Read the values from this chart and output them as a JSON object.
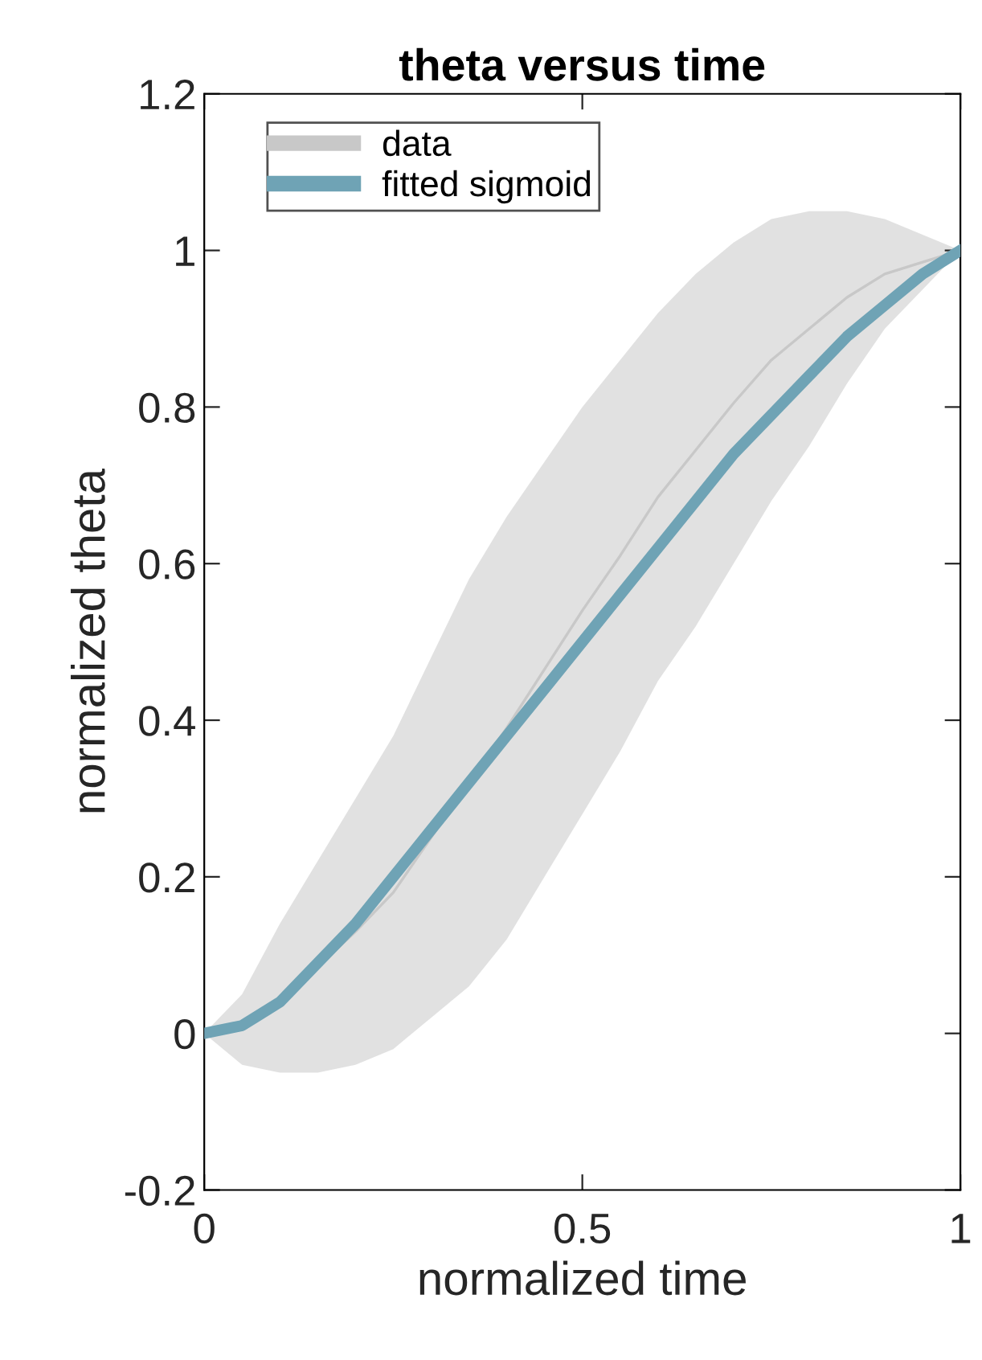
{
  "chart_data": {
    "type": "line",
    "title": "theta versus time",
    "xlabel": "normalized time",
    "ylabel": "normalized theta",
    "x": [
      0,
      0.05,
      0.1,
      0.15,
      0.2,
      0.25,
      0.3,
      0.35,
      0.4,
      0.45,
      0.5,
      0.55,
      0.6,
      0.65,
      0.7,
      0.75,
      0.8,
      0.85,
      0.9,
      0.95,
      1
    ],
    "series": [
      {
        "name": "data",
        "color": "#c8c8c8",
        "values": [
          0,
          0.005,
          0.045,
          0.085,
          0.13,
          0.18,
          0.25,
          0.32,
          0.39,
          0.465,
          0.54,
          0.61,
          0.685,
          0.745,
          0.805,
          0.86,
          0.9,
          0.94,
          0.97,
          0.985,
          1
        ],
        "lower": [
          0,
          -0.04,
          -0.05,
          -0.05,
          -0.04,
          -0.02,
          0.02,
          0.06,
          0.12,
          0.2,
          0.28,
          0.36,
          0.45,
          0.52,
          0.6,
          0.68,
          0.75,
          0.83,
          0.9,
          0.95,
          1
        ],
        "upper": [
          0,
          0.05,
          0.14,
          0.22,
          0.3,
          0.38,
          0.48,
          0.58,
          0.66,
          0.73,
          0.8,
          0.86,
          0.92,
          0.97,
          1.01,
          1.04,
          1.05,
          1.05,
          1.04,
          1.02,
          1
        ]
      },
      {
        "name": "fitted sigmoid",
        "color": "#6fa3b5",
        "values": [
          0,
          0.01,
          0.04,
          0.09,
          0.14,
          0.2,
          0.26,
          0.32,
          0.38,
          0.44,
          0.5,
          0.56,
          0.62,
          0.68,
          0.74,
          0.79,
          0.84,
          0.89,
          0.93,
          0.97,
          1
        ]
      }
    ],
    "xlim": [
      0,
      1
    ],
    "ylim": [
      -0.2,
      1.2
    ],
    "xticks": [
      0,
      0.5,
      1
    ],
    "yticks": [
      {
        "value": -0.2,
        "label": "-0.2"
      },
      0,
      0.2,
      0.4,
      0.6,
      0.8,
      1,
      1.2
    ],
    "grid": false,
    "legend": "top left",
    "marker": "none",
    "line_style": "solid"
  }
}
